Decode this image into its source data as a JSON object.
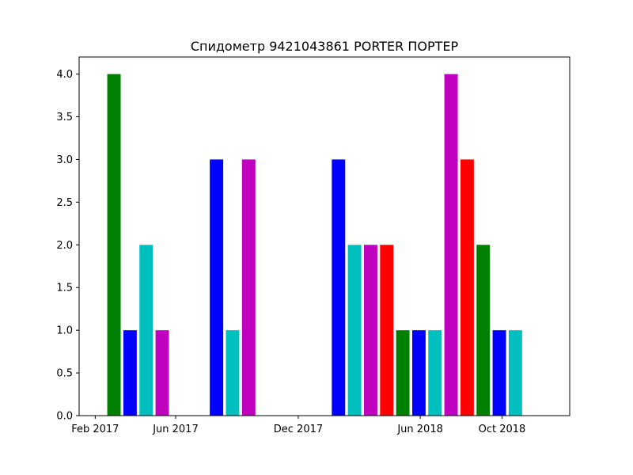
{
  "chart_data": {
    "type": "bar",
    "title": "Спидометр 9421043861 PORTER ПОРТЕР",
    "xlabel": "",
    "ylabel": "",
    "ylim": [
      0,
      4.2
    ],
    "xlim": [
      "2017-01-08",
      "2019-01-10"
    ],
    "grid": false,
    "bar_width_days": 20,
    "yticks": [
      0.0,
      0.5,
      1.0,
      1.5,
      2.0,
      2.5,
      3.0,
      3.5,
      4.0
    ],
    "ytick_labels": [
      "0.0",
      "0.5",
      "1.0",
      "1.5",
      "2.0",
      "2.5",
      "3.0",
      "3.5",
      "4.0"
    ],
    "xticks": [
      "2017-02-01",
      "2017-06-01",
      "2017-12-01",
      "2018-06-01",
      "2018-10-01"
    ],
    "xtick_labels": [
      "Feb 2017",
      "Jun 2017",
      "Dec 2017",
      "Jun 2018",
      "Oct 2018"
    ],
    "bars": [
      {
        "x": "2017-03-01",
        "value": 4,
        "color": "#008000"
      },
      {
        "x": "2017-03-25",
        "value": 1,
        "color": "#0000ff"
      },
      {
        "x": "2017-04-18",
        "value": 2,
        "color": "#00bfbf"
      },
      {
        "x": "2017-05-12",
        "value": 1,
        "color": "#bf00bf"
      },
      {
        "x": "2017-08-01",
        "value": 3,
        "color": "#0000ff"
      },
      {
        "x": "2017-08-25",
        "value": 1,
        "color": "#00bfbf"
      },
      {
        "x": "2017-09-18",
        "value": 3,
        "color": "#bf00bf"
      },
      {
        "x": "2018-01-30",
        "value": 3,
        "color": "#0000ff"
      },
      {
        "x": "2018-02-23",
        "value": 2,
        "color": "#00bfbf"
      },
      {
        "x": "2018-03-19",
        "value": 2,
        "color": "#bf00bf"
      },
      {
        "x": "2018-04-12",
        "value": 2,
        "color": "#ff0000"
      },
      {
        "x": "2018-05-06",
        "value": 1,
        "color": "#008000"
      },
      {
        "x": "2018-05-30",
        "value": 1,
        "color": "#0000ff"
      },
      {
        "x": "2018-06-23",
        "value": 1,
        "color": "#00bfbf"
      },
      {
        "x": "2018-07-17",
        "value": 4,
        "color": "#bf00bf"
      },
      {
        "x": "2018-08-10",
        "value": 3,
        "color": "#ff0000"
      },
      {
        "x": "2018-09-03",
        "value": 2,
        "color": "#008000"
      },
      {
        "x": "2018-09-27",
        "value": 1,
        "color": "#0000ff"
      },
      {
        "x": "2018-10-21",
        "value": 1,
        "color": "#00bfbf"
      }
    ]
  }
}
